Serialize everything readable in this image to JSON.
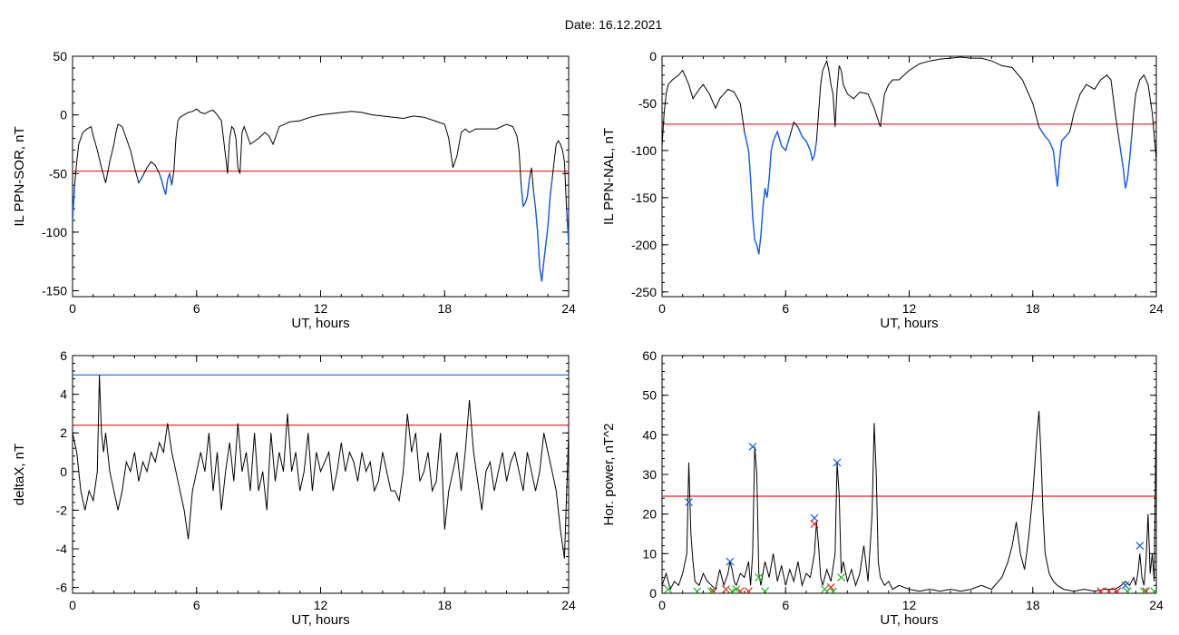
{
  "date_line": "Date:  16.12.2021",
  "chart_data": [
    {
      "type": "line",
      "xlabel": "UT, hours",
      "ylabel": "IL PPN-SOR, nT",
      "xlim": [
        0,
        24
      ],
      "ylim": [
        -155,
        50
      ],
      "xticks": [
        0,
        6,
        12,
        18,
        24
      ],
      "yticks": [
        -150,
        -100,
        -50,
        0,
        50
      ],
      "threshold": -48,
      "colors": {
        "line": "#000000",
        "below_threshold": "#1a5fd8",
        "threshold": "#e02020"
      },
      "series": [
        {
          "x": [
            0,
            0.1,
            0.2,
            0.3,
            0.5,
            0.7,
            0.9,
            1.0,
            1.2,
            1.4,
            1.6,
            1.8,
            2.0,
            2.1,
            2.2,
            2.4,
            2.6,
            2.8,
            3.0,
            3.2,
            3.4,
            3.6,
            3.8,
            4.0,
            4.2,
            4.3,
            4.4,
            4.5,
            4.6,
            4.7,
            4.8,
            4.9,
            5.0,
            5.1,
            5.2,
            5.4,
            5.6,
            5.8,
            6.0,
            6.2,
            6.4,
            6.6,
            6.8,
            7.0,
            7.2,
            7.4,
            7.5,
            7.6,
            7.7,
            7.8,
            7.9,
            8.0,
            8.1,
            8.2,
            8.3,
            8.4,
            8.6,
            9.0,
            9.3,
            9.5,
            9.7,
            10.0,
            10.5,
            11.0,
            11.5,
            12.0,
            12.5,
            13.0,
            13.5,
            14.0,
            14.5,
            15.0,
            15.5,
            16.0,
            16.5,
            17.0,
            17.5,
            18.0,
            18.2,
            18.4,
            18.6,
            18.8,
            19.0,
            19.2,
            19.5,
            20.0,
            20.5,
            21.0,
            21.3,
            21.5,
            21.6,
            21.7,
            21.8,
            21.9,
            22.0,
            22.1,
            22.2,
            22.3,
            22.4,
            22.5,
            22.6,
            22.7,
            22.8,
            22.9,
            23.0,
            23.1,
            23.2,
            23.3,
            23.4,
            23.5,
            23.6,
            23.7,
            23.8,
            23.9,
            24.0
          ],
          "y": [
            -90,
            -60,
            -40,
            -25,
            -15,
            -12,
            -10,
            -18,
            -30,
            -45,
            -58,
            -40,
            -25,
            -15,
            -8,
            -10,
            -20,
            -30,
            -45,
            -58,
            -52,
            -45,
            -40,
            -43,
            -50,
            -55,
            -62,
            -68,
            -55,
            -50,
            -60,
            -48,
            -20,
            -5,
            -2,
            0,
            2,
            3,
            5,
            2,
            1,
            3,
            4,
            0,
            -5,
            -35,
            -50,
            -20,
            -10,
            -12,
            -20,
            -45,
            -50,
            -15,
            -10,
            -15,
            -25,
            -20,
            -15,
            -18,
            -25,
            -10,
            -6,
            -5,
            -2,
            0,
            1,
            2,
            3,
            2,
            0,
            -1,
            -2,
            -3,
            -1,
            -2,
            -5,
            -8,
            -20,
            -45,
            -35,
            -15,
            -12,
            -15,
            -12,
            -12,
            -12,
            -8,
            -10,
            -18,
            -30,
            -60,
            -78,
            -75,
            -70,
            -55,
            -45,
            -65,
            -80,
            -100,
            -130,
            -142,
            -125,
            -110,
            -95,
            -70,
            -55,
            -40,
            -25,
            -22,
            -25,
            -30,
            -40,
            -80,
            -110
          ]
        }
      ]
    },
    {
      "type": "line",
      "xlabel": "UT, hours",
      "ylabel": "IL PPN-NAL, nT",
      "xlim": [
        0,
        24
      ],
      "ylim": [
        -255,
        0
      ],
      "xticks": [
        0,
        6,
        12,
        18,
        24
      ],
      "yticks": [
        -250,
        -200,
        -150,
        -100,
        -50,
        0
      ],
      "threshold": -72,
      "colors": {
        "line": "#000000",
        "below_threshold": "#1a5fd8",
        "threshold": "#e02020"
      },
      "series": [
        {
          "x": [
            0,
            0.1,
            0.2,
            0.3,
            0.5,
            0.8,
            1.0,
            1.3,
            1.5,
            1.8,
            2.0,
            2.3,
            2.6,
            2.8,
            3.0,
            3.2,
            3.5,
            3.8,
            4.0,
            4.2,
            4.3,
            4.4,
            4.5,
            4.6,
            4.7,
            4.8,
            4.9,
            5.0,
            5.1,
            5.2,
            5.3,
            5.4,
            5.6,
            5.8,
            6.0,
            6.2,
            6.4,
            6.6,
            6.8,
            7.0,
            7.2,
            7.3,
            7.4,
            7.5,
            7.6,
            7.7,
            7.8,
            7.9,
            8.0,
            8.1,
            8.2,
            8.3,
            8.4,
            8.5,
            8.6,
            8.7,
            8.8,
            9.0,
            9.3,
            9.6,
            10.0,
            10.3,
            10.6,
            10.8,
            11.0,
            11.2,
            11.5,
            12.0,
            12.5,
            13.0,
            13.5,
            14.0,
            14.5,
            15.0,
            15.5,
            16.0,
            16.5,
            17.0,
            17.5,
            18.0,
            18.3,
            18.6,
            18.8,
            19.0,
            19.1,
            19.2,
            19.3,
            19.4,
            19.6,
            19.8,
            20.0,
            20.3,
            20.6,
            21.0,
            21.3,
            21.6,
            21.8,
            22.0,
            22.2,
            22.4,
            22.5,
            22.6,
            22.7,
            22.8,
            22.9,
            23.0,
            23.2,
            23.4,
            23.6,
            23.8,
            24.0
          ],
          "y": [
            -95,
            -60,
            -40,
            -30,
            -25,
            -20,
            -15,
            -30,
            -45,
            -35,
            -30,
            -40,
            -55,
            -45,
            -40,
            -35,
            -38,
            -50,
            -80,
            -100,
            -130,
            -170,
            -195,
            -200,
            -210,
            -190,
            -160,
            -140,
            -150,
            -130,
            -100,
            -90,
            -80,
            -95,
            -100,
            -85,
            -70,
            -75,
            -85,
            -90,
            -100,
            -110,
            -105,
            -90,
            -60,
            -30,
            -15,
            -10,
            -5,
            -15,
            -30,
            -40,
            -75,
            -35,
            -10,
            -15,
            -30,
            -40,
            -45,
            -38,
            -40,
            -55,
            -75,
            -40,
            -30,
            -25,
            -25,
            -15,
            -8,
            -5,
            -3,
            -2,
            -1,
            -2,
            -2,
            -5,
            -10,
            -12,
            -25,
            -50,
            -75,
            -85,
            -90,
            -100,
            -120,
            -138,
            -110,
            -90,
            -85,
            -80,
            -60,
            -40,
            -30,
            -35,
            -25,
            -20,
            -25,
            -60,
            -90,
            -120,
            -140,
            -130,
            -110,
            -85,
            -60,
            -40,
            -25,
            -20,
            -30,
            -60,
            -110
          ]
        }
      ]
    },
    {
      "type": "line",
      "xlabel": "UT, hours",
      "ylabel": "deltaX, nT",
      "xlim": [
        0,
        24
      ],
      "ylim": [
        -6.3,
        6
      ],
      "xticks": [
        0,
        6,
        12,
        18,
        24
      ],
      "yticks": [
        -6,
        -4,
        -2,
        0,
        2,
        4,
        6
      ],
      "reference_lines": [
        {
          "y": 5.0,
          "color": "#1a5fd8"
        },
        {
          "y": 2.4,
          "color": "#e02020"
        }
      ],
      "colors": {
        "line": "#000000"
      },
      "series": [
        {
          "x": [
            0,
            0.2,
            0.4,
            0.6,
            0.8,
            1.0,
            1.2,
            1.3,
            1.4,
            1.5,
            1.6,
            1.8,
            2.0,
            2.2,
            2.4,
            2.6,
            2.8,
            3.0,
            3.2,
            3.4,
            3.6,
            3.8,
            4.0,
            4.2,
            4.4,
            4.6,
            4.8,
            5.0,
            5.2,
            5.4,
            5.6,
            5.8,
            6.0,
            6.2,
            6.4,
            6.6,
            6.8,
            7.0,
            7.2,
            7.4,
            7.6,
            7.8,
            8.0,
            8.2,
            8.4,
            8.6,
            8.8,
            9.0,
            9.2,
            9.4,
            9.6,
            9.8,
            10.0,
            10.2,
            10.4,
            10.6,
            10.8,
            11.0,
            11.2,
            11.4,
            11.6,
            11.8,
            12.0,
            12.2,
            12.4,
            12.6,
            12.8,
            13.0,
            13.2,
            13.4,
            13.6,
            13.8,
            14.0,
            14.2,
            14.4,
            14.6,
            14.8,
            15.0,
            15.2,
            15.4,
            15.6,
            15.8,
            16.0,
            16.2,
            16.4,
            16.6,
            16.8,
            17.0,
            17.2,
            17.4,
            17.6,
            17.8,
            18.0,
            18.2,
            18.4,
            18.6,
            18.8,
            19.0,
            19.2,
            19.4,
            19.6,
            19.8,
            20.0,
            20.2,
            20.4,
            20.6,
            20.8,
            21.0,
            21.2,
            21.4,
            21.6,
            21.8,
            22.0,
            22.2,
            22.4,
            22.6,
            22.8,
            23.0,
            23.2,
            23.4,
            23.6,
            23.8,
            24.0
          ],
          "y": [
            2,
            1,
            -1,
            -2,
            -1,
            -1.5,
            0,
            5,
            2,
            1,
            2,
            0,
            -1,
            -2,
            -1,
            0.5,
            0,
            1,
            -0.5,
            0.5,
            0,
            1,
            0.5,
            1.5,
            1,
            2.5,
            1,
            0,
            -1,
            -2,
            -3.5,
            -1,
            0,
            1,
            0,
            2,
            -1,
            1,
            -2,
            0,
            1.5,
            -0.5,
            2.5,
            0,
            1,
            -1,
            2,
            -1,
            0,
            -2,
            2,
            -0.5,
            1,
            0,
            3,
            0,
            1,
            -1,
            0,
            2,
            -1,
            1,
            0,
            0.5,
            1,
            -1,
            0,
            1.5,
            0,
            1,
            0.5,
            -0.5,
            1,
            0,
            0.5,
            -1,
            -0.5,
            1,
            0,
            -1,
            -1,
            -1.5,
            0,
            3,
            1,
            2,
            -0.5,
            0,
            1,
            -1,
            -0.5,
            2,
            -3,
            -1,
            0,
            1,
            -1,
            1,
            3.7,
            1,
            -0.5,
            -2,
            0,
            0.5,
            -1,
            0,
            1,
            -0.5,
            0.5,
            1,
            0,
            -1,
            1,
            0,
            -1,
            0,
            2,
            1,
            0,
            -1,
            -3,
            -4.5,
            2
          ]
        }
      ]
    },
    {
      "type": "line",
      "xlabel": "UT, hours",
      "ylabel": "Hor. power, nT^2",
      "xlim": [
        0,
        24
      ],
      "ylim": [
        0,
        60
      ],
      "xticks": [
        0,
        6,
        12,
        18,
        24
      ],
      "yticks": [
        0,
        10,
        20,
        30,
        40,
        50,
        60
      ],
      "threshold": 24.5,
      "colors": {
        "line": "#000000",
        "threshold": "#e02020",
        "marker_blue": "#1a5fd8",
        "marker_red": "#e02020",
        "marker_green": "#20b020"
      },
      "series": [
        {
          "x": [
            0,
            0.2,
            0.4,
            0.6,
            0.8,
            1.0,
            1.2,
            1.3,
            1.4,
            1.5,
            1.6,
            1.8,
            2.0,
            2.2,
            2.4,
            2.6,
            2.8,
            3.0,
            3.2,
            3.3,
            3.4,
            3.5,
            3.6,
            3.8,
            4.0,
            4.2,
            4.3,
            4.4,
            4.5,
            4.6,
            4.7,
            4.8,
            5.0,
            5.2,
            5.4,
            5.6,
            5.8,
            6.0,
            6.2,
            6.4,
            6.6,
            6.8,
            7.0,
            7.2,
            7.4,
            7.5,
            7.6,
            7.7,
            7.8,
            8.0,
            8.2,
            8.4,
            8.5,
            8.6,
            8.7,
            8.8,
            9.0,
            9.2,
            9.4,
            9.6,
            9.8,
            10.0,
            10.2,
            10.3,
            10.4,
            10.5,
            10.6,
            10.8,
            11.0,
            11.2,
            11.5,
            12.0,
            12.5,
            13.0,
            13.5,
            14.0,
            14.5,
            15.0,
            15.5,
            16.0,
            16.5,
            16.8,
            17.0,
            17.2,
            17.4,
            17.6,
            17.8,
            18.0,
            18.2,
            18.3,
            18.4,
            18.5,
            18.6,
            18.8,
            19.0,
            19.2,
            19.5,
            20.0,
            20.5,
            21.0,
            21.5,
            22.0,
            22.3,
            22.5,
            22.7,
            22.9,
            23.0,
            23.1,
            23.2,
            23.3,
            23.4,
            23.5,
            23.6,
            23.7,
            23.8,
            23.9,
            24.0
          ],
          "y": [
            2,
            5,
            1,
            3,
            2,
            5,
            10,
            33,
            15,
            8,
            3,
            2,
            5,
            3,
            2,
            1,
            6,
            2,
            5,
            8,
            6,
            3,
            2,
            5,
            4,
            8,
            2,
            10,
            37,
            30,
            5,
            2,
            8,
            4,
            10,
            3,
            7,
            2,
            6,
            3,
            8,
            2,
            5,
            4,
            10,
            18,
            12,
            4,
            2,
            6,
            3,
            10,
            33,
            25,
            5,
            8,
            3,
            6,
            2,
            5,
            12,
            3,
            20,
            43,
            30,
            8,
            4,
            2,
            3,
            1,
            2,
            1,
            0.5,
            1,
            0.5,
            1,
            0.5,
            1,
            2,
            1,
            4,
            8,
            12,
            18,
            10,
            6,
            14,
            25,
            40,
            46,
            35,
            20,
            10,
            5,
            3,
            2,
            1,
            0.5,
            1,
            0.5,
            1,
            1,
            2,
            3,
            2,
            4,
            2,
            5,
            10,
            4,
            2,
            8,
            20,
            5,
            10,
            3,
            50
          ]
        },
        {
          "name": "markers-blue",
          "x": [
            1.3,
            3.3,
            4.4,
            7.4,
            8.5,
            22.5,
            23.2
          ],
          "y": [
            23,
            8,
            37,
            19,
            33,
            2,
            12
          ]
        },
        {
          "name": "markers-red",
          "x": [
            2.5,
            3.1,
            3.8,
            4.2,
            7.4,
            8.2,
            21.3,
            21.7,
            22.1,
            23.5
          ],
          "y": [
            0.5,
            1,
            0.5,
            0.5,
            17.5,
            1.5,
            0.5,
            0.5,
            0.5,
            0.5
          ]
        },
        {
          "name": "markers-green",
          "x": [
            0.3,
            1.7,
            2.4,
            3.4,
            3.6,
            4.7,
            5.0,
            7.9,
            8.3,
            8.7,
            22.6,
            23.4,
            23.9
          ],
          "y": [
            1,
            0.5,
            0.5,
            0.5,
            1,
            4,
            0.5,
            1,
            0.5,
            4,
            0.5,
            0.5,
            0.5
          ]
        }
      ]
    }
  ]
}
